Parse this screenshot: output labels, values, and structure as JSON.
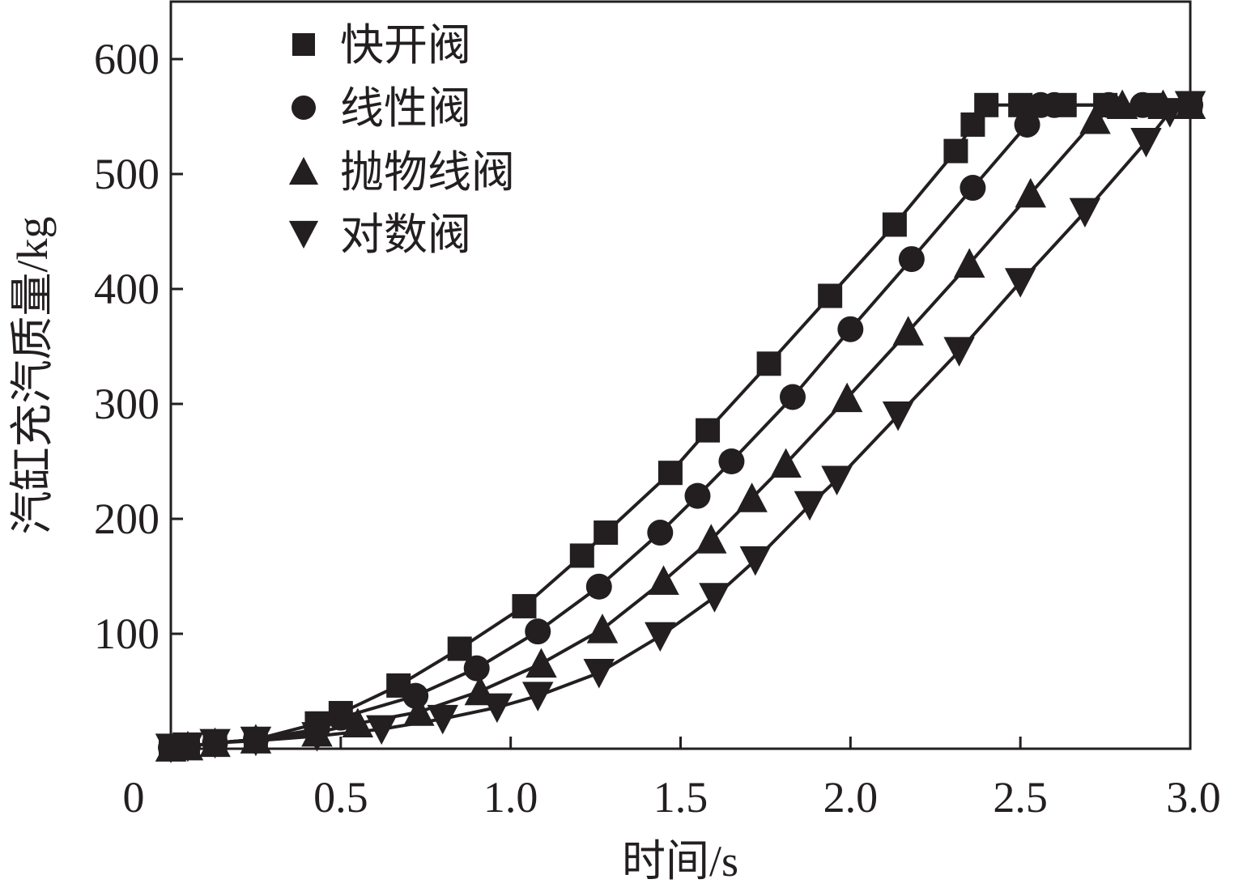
{
  "chart_data": {
    "type": "line",
    "title": "",
    "xlabel": "时间/s",
    "ylabel": "汽缸充汽质量/kg",
    "xlim": [
      0,
      3.0
    ],
    "ylim": [
      0,
      650
    ],
    "x_ticks": [
      "0",
      "0.5",
      "1.0",
      "1.5",
      "2.0",
      "2.5",
      "3.0"
    ],
    "x_tick_values": [
      0,
      0.5,
      1.0,
      1.5,
      2.0,
      2.5,
      3.0
    ],
    "y_ticks": [
      "100",
      "200",
      "300",
      "400",
      "500",
      "600"
    ],
    "y_tick_values": [
      100,
      200,
      300,
      400,
      500,
      600
    ],
    "grid": false,
    "legend_position": "top-left",
    "line_color": "#231f20",
    "series": [
      {
        "name": "快开阀",
        "marker": "square",
        "points": [
          [
            0.0,
            1
          ],
          [
            0.05,
            2
          ],
          [
            0.13,
            5
          ],
          [
            0.25,
            8
          ],
          [
            0.43,
            22
          ],
          [
            0.5,
            31
          ],
          [
            0.67,
            55
          ],
          [
            0.85,
            87
          ],
          [
            1.04,
            124
          ],
          [
            1.21,
            168
          ],
          [
            1.28,
            188
          ],
          [
            1.47,
            240
          ],
          [
            1.58,
            277
          ],
          [
            1.76,
            335
          ],
          [
            1.94,
            394
          ],
          [
            2.13,
            456
          ],
          [
            2.31,
            520
          ],
          [
            2.36,
            543
          ],
          [
            2.4,
            560
          ],
          [
            2.5,
            560
          ],
          [
            2.63,
            560
          ],
          [
            2.75,
            560
          ],
          [
            2.88,
            560
          ],
          [
            3.0,
            560
          ]
        ]
      },
      {
        "name": "线性阀",
        "marker": "circle",
        "points": [
          [
            0.0,
            1
          ],
          [
            0.05,
            2
          ],
          [
            0.13,
            5
          ],
          [
            0.25,
            8
          ],
          [
            0.43,
            17
          ],
          [
            0.5,
            27
          ],
          [
            0.72,
            46
          ],
          [
            0.9,
            70
          ],
          [
            1.08,
            102
          ],
          [
            1.26,
            141
          ],
          [
            1.44,
            188
          ],
          [
            1.55,
            220
          ],
          [
            1.65,
            250
          ],
          [
            1.83,
            306
          ],
          [
            2.0,
            365
          ],
          [
            2.18,
            426
          ],
          [
            2.36,
            488
          ],
          [
            2.52,
            543
          ],
          [
            2.56,
            560
          ],
          [
            2.6,
            560
          ],
          [
            2.76,
            560
          ],
          [
            2.86,
            560
          ],
          [
            3.0,
            560
          ]
        ]
      },
      {
        "name": "抛物线阀",
        "marker": "triangle-up",
        "points": [
          [
            0.0,
            1
          ],
          [
            0.05,
            2
          ],
          [
            0.13,
            5
          ],
          [
            0.25,
            8
          ],
          [
            0.43,
            14
          ],
          [
            0.55,
            22
          ],
          [
            0.73,
            32
          ],
          [
            0.91,
            50
          ],
          [
            1.09,
            74
          ],
          [
            1.27,
            104
          ],
          [
            1.45,
            146
          ],
          [
            1.59,
            182
          ],
          [
            1.71,
            218
          ],
          [
            1.81,
            248
          ],
          [
            1.99,
            305
          ],
          [
            2.17,
            363
          ],
          [
            2.35,
            422
          ],
          [
            2.53,
            483
          ],
          [
            2.72,
            547
          ],
          [
            2.8,
            560
          ],
          [
            2.92,
            560
          ],
          [
            3.0,
            560
          ]
        ]
      },
      {
        "name": "对数阀",
        "marker": "triangle-down",
        "points": [
          [
            0.0,
            1
          ],
          [
            0.05,
            2
          ],
          [
            0.13,
            5
          ],
          [
            0.25,
            7
          ],
          [
            0.43,
            11
          ],
          [
            0.62,
            17
          ],
          [
            0.8,
            26
          ],
          [
            0.96,
            36
          ],
          [
            1.08,
            46
          ],
          [
            1.26,
            66
          ],
          [
            1.44,
            98
          ],
          [
            1.6,
            132
          ],
          [
            1.72,
            164
          ],
          [
            1.88,
            212
          ],
          [
            1.96,
            234
          ],
          [
            2.14,
            290
          ],
          [
            2.32,
            346
          ],
          [
            2.5,
            406
          ],
          [
            2.69,
            467
          ],
          [
            2.87,
            528
          ],
          [
            2.94,
            554
          ],
          [
            3.0,
            560
          ]
        ]
      }
    ]
  }
}
